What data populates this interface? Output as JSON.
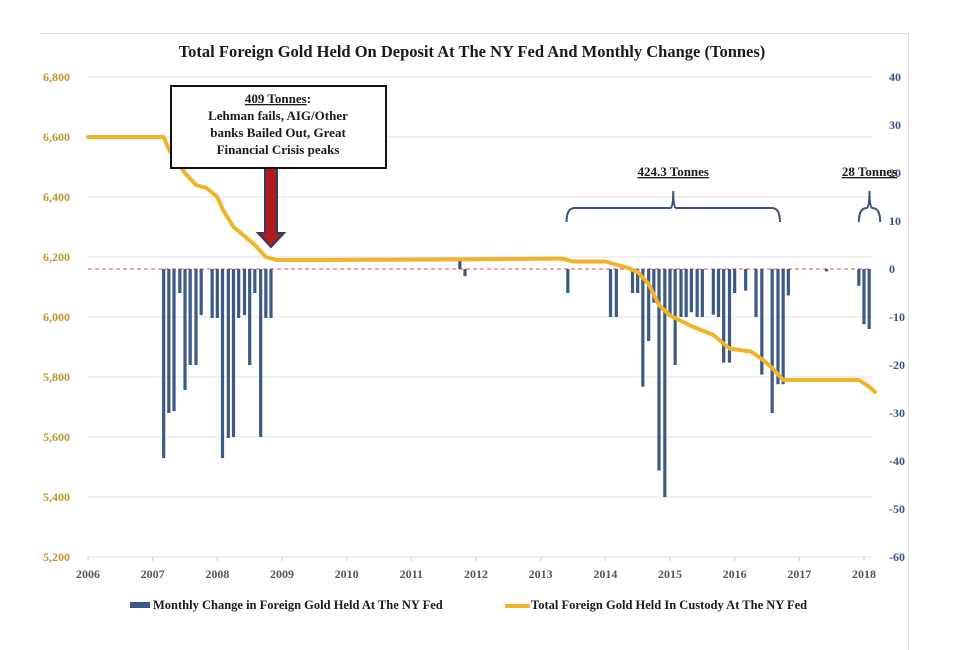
{
  "chart_data": {
    "type": "bar+line",
    "title": "Total Foreign Gold Held On Deposit At The NY Fed And Monthly Change (Tonnes)",
    "xlabel": "",
    "x_ticks": [
      "2006",
      "2007",
      "2008",
      "2009",
      "2010",
      "2011",
      "2012",
      "2013",
      "2014",
      "2015",
      "2016",
      "2017",
      "2018"
    ],
    "xlim": [
      2006,
      2018
    ],
    "left_axis": {
      "label": "",
      "ticks": [
        "6,800",
        "6,600",
        "6,400",
        "6,200",
        "6,000",
        "5,800",
        "5,600",
        "5,400",
        "5,200"
      ],
      "ylim": [
        5200,
        6800
      ],
      "color": "#b8962e"
    },
    "right_axis": {
      "label": "",
      "ticks": [
        "40",
        "30",
        "20",
        "10",
        "0",
        "-10",
        "-20",
        "-30",
        "-40",
        "-50",
        "-60"
      ],
      "ylim": [
        -60,
        40
      ],
      "color": "#3b5478"
    },
    "grid": true,
    "zero_line": {
      "value": 0,
      "color": "#d9534f",
      "style": "dashed"
    },
    "series": [
      {
        "name": "Monthly Change in Foreign Gold Held At The NY Fed",
        "type": "bar",
        "axis": "right",
        "color": "#3b5a86",
        "points": [
          {
            "x": 2007.17,
            "y": -39.4
          },
          {
            "x": 2007.25,
            "y": -30.0
          },
          {
            "x": 2007.33,
            "y": -29.6
          },
          {
            "x": 2007.42,
            "y": -5.0
          },
          {
            "x": 2007.5,
            "y": -25.2
          },
          {
            "x": 2007.58,
            "y": -20.0
          },
          {
            "x": 2007.67,
            "y": -20.0
          },
          {
            "x": 2007.75,
            "y": -9.6
          },
          {
            "x": 2007.92,
            "y": -10.2
          },
          {
            "x": 2008.0,
            "y": -10.2
          },
          {
            "x": 2008.08,
            "y": -39.4
          },
          {
            "x": 2008.17,
            "y": -35.2
          },
          {
            "x": 2008.25,
            "y": -35.0
          },
          {
            "x": 2008.33,
            "y": -10.2
          },
          {
            "x": 2008.42,
            "y": -9.6
          },
          {
            "x": 2008.5,
            "y": -20.0
          },
          {
            "x": 2008.58,
            "y": -5.0
          },
          {
            "x": 2008.67,
            "y": -35.0
          },
          {
            "x": 2008.75,
            "y": -10.2
          },
          {
            "x": 2008.83,
            "y": -10.2
          },
          {
            "x": 2011.75,
            "y": 2.0
          },
          {
            "x": 2011.83,
            "y": -1.5
          },
          {
            "x": 2013.42,
            "y": -5.0
          },
          {
            "x": 2014.08,
            "y": -10.0
          },
          {
            "x": 2014.17,
            "y": -10.0
          },
          {
            "x": 2014.42,
            "y": -5.0
          },
          {
            "x": 2014.5,
            "y": -5.0
          },
          {
            "x": 2014.58,
            "y": -24.5
          },
          {
            "x": 2014.67,
            "y": -15.0
          },
          {
            "x": 2014.75,
            "y": -7.0
          },
          {
            "x": 2014.83,
            "y": -42.0
          },
          {
            "x": 2014.92,
            "y": -47.5
          },
          {
            "x": 2015.0,
            "y": -10.0
          },
          {
            "x": 2015.08,
            "y": -20.0
          },
          {
            "x": 2015.17,
            "y": -10.0
          },
          {
            "x": 2015.25,
            "y": -10.0
          },
          {
            "x": 2015.33,
            "y": -9.0
          },
          {
            "x": 2015.42,
            "y": -10.0
          },
          {
            "x": 2015.5,
            "y": -10.0
          },
          {
            "x": 2015.67,
            "y": -9.5
          },
          {
            "x": 2015.75,
            "y": -10.0
          },
          {
            "x": 2015.83,
            "y": -19.5
          },
          {
            "x": 2015.92,
            "y": -19.5
          },
          {
            "x": 2016.0,
            "y": -5.0
          },
          {
            "x": 2016.17,
            "y": -4.5
          },
          {
            "x": 2016.33,
            "y": -10.0
          },
          {
            "x": 2016.42,
            "y": -22.0
          },
          {
            "x": 2016.58,
            "y": -30.0
          },
          {
            "x": 2016.67,
            "y": -24.0
          },
          {
            "x": 2016.75,
            "y": -24.0
          },
          {
            "x": 2016.83,
            "y": -5.5
          },
          {
            "x": 2017.42,
            "y": -0.5
          },
          {
            "x": 2017.92,
            "y": -3.5
          },
          {
            "x": 2018.0,
            "y": -11.5
          },
          {
            "x": 2018.08,
            "y": -12.5
          }
        ]
      },
      {
        "name": "Total Foreign Gold Held In Custody At The NY Fed",
        "type": "line",
        "axis": "left",
        "color": "#f0b429",
        "points": [
          {
            "x": 2006.0,
            "y": 6600
          },
          {
            "x": 2007.17,
            "y": 6600
          },
          {
            "x": 2007.25,
            "y": 6560
          },
          {
            "x": 2007.33,
            "y": 6530
          },
          {
            "x": 2007.5,
            "y": 6480
          },
          {
            "x": 2007.67,
            "y": 6440
          },
          {
            "x": 2007.83,
            "y": 6430
          },
          {
            "x": 2008.0,
            "y": 6400
          },
          {
            "x": 2008.08,
            "y": 6360
          },
          {
            "x": 2008.25,
            "y": 6300
          },
          {
            "x": 2008.42,
            "y": 6270
          },
          {
            "x": 2008.58,
            "y": 6240
          },
          {
            "x": 2008.75,
            "y": 6200
          },
          {
            "x": 2008.92,
            "y": 6190
          },
          {
            "x": 2009.5,
            "y": 6190
          },
          {
            "x": 2011.75,
            "y": 6192
          },
          {
            "x": 2013.33,
            "y": 6195
          },
          {
            "x": 2013.5,
            "y": 6185
          },
          {
            "x": 2014.0,
            "y": 6185
          },
          {
            "x": 2014.33,
            "y": 6165
          },
          {
            "x": 2014.5,
            "y": 6150
          },
          {
            "x": 2014.67,
            "y": 6110
          },
          {
            "x": 2014.83,
            "y": 6040
          },
          {
            "x": 2015.0,
            "y": 6005
          },
          {
            "x": 2015.33,
            "y": 5970
          },
          {
            "x": 2015.67,
            "y": 5940
          },
          {
            "x": 2015.92,
            "y": 5895
          },
          {
            "x": 2016.25,
            "y": 5885
          },
          {
            "x": 2016.42,
            "y": 5860
          },
          {
            "x": 2016.58,
            "y": 5830
          },
          {
            "x": 2016.75,
            "y": 5790
          },
          {
            "x": 2017.0,
            "y": 5790
          },
          {
            "x": 2017.92,
            "y": 5790
          },
          {
            "x": 2018.08,
            "y": 5768
          },
          {
            "x": 2018.17,
            "y": 5750
          }
        ]
      }
    ],
    "legend": {
      "position": "bottom",
      "entries": [
        {
          "label": "Monthly Change in Foreign Gold Held At The NY Fed",
          "kind": "bar",
          "color": "#3b5a86"
        },
        {
          "label": "Total Foreign Gold Held In Custody At The NY Fed",
          "kind": "line",
          "color": "#f0b429"
        }
      ]
    },
    "annotations": [
      {
        "kind": "callout-box",
        "heading": "409 Tonnes",
        "heading_suffix": ":",
        "lines": [
          "Lehman fails, AIG/Other",
          "banks Bailed Out, Great",
          "Financial Crisis peaks"
        ],
        "arrow_target_x": 2008.83,
        "arrow_color": "#b01c1c",
        "arrow_outline": "#2c3e66"
      },
      {
        "kind": "bracket",
        "label": "424.3 Tonnes",
        "x_start": 2013.4,
        "x_end": 2016.7
      },
      {
        "kind": "bracket",
        "label": "28 Tonnes",
        "x_start": 2017.92,
        "x_end": 2018.25
      }
    ]
  }
}
